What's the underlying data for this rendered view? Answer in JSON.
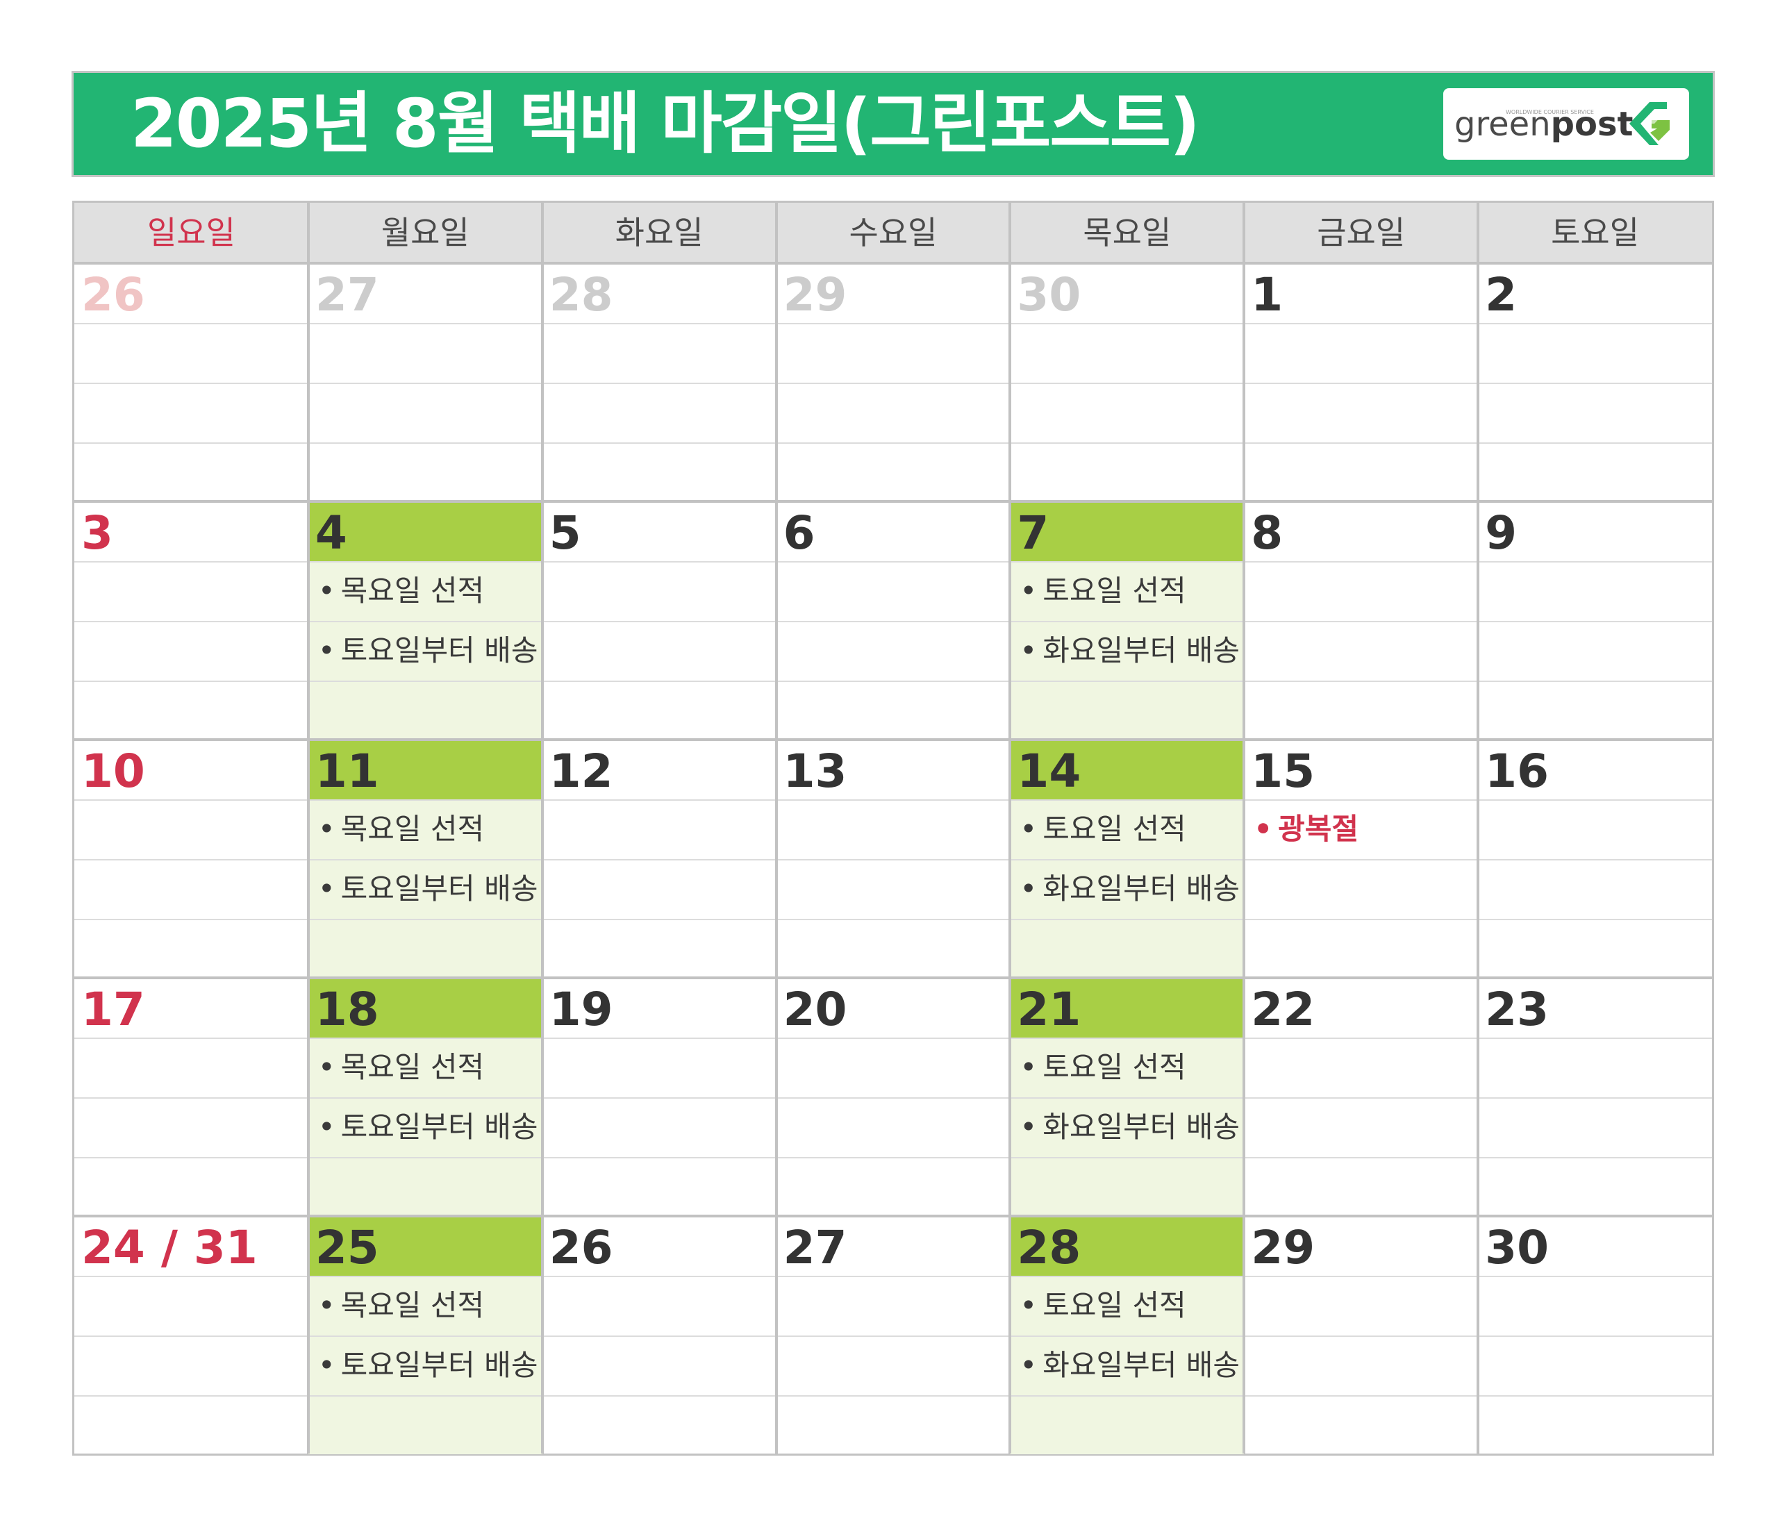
{
  "title": "2025년 8월 택배 마감일(그린포스트)",
  "logo": {
    "text_light": "green",
    "text_bold": "post",
    "tagline": "WORLDWIDE COURIER SERVICE",
    "mark": "G-logo-icon",
    "mark_color": "#22b573"
  },
  "colors": {
    "title_bg": "#22b573",
    "header_bg": "#e0e0e0",
    "deadline_strip": "#a8cf45",
    "deadline_body": "#f0f6e1",
    "sunday_red": "#d1334d"
  },
  "weekdays": [
    "일요일",
    "월요일",
    "화요일",
    "수요일",
    "목요일",
    "금요일",
    "토요일"
  ],
  "weeks": [
    [
      {
        "label": "26",
        "style": "faded-sun"
      },
      {
        "label": "27",
        "style": "faded"
      },
      {
        "label": "28",
        "style": "faded"
      },
      {
        "label": "29",
        "style": "faded"
      },
      {
        "label": "30",
        "style": "faded"
      },
      {
        "label": "1",
        "style": "normal"
      },
      {
        "label": "2",
        "style": "normal"
      }
    ],
    [
      {
        "label": "3",
        "style": "sun"
      },
      {
        "label": "4",
        "style": "normal",
        "highlight": true,
        "notes": [
          "목요일 선적",
          "토요일부터 배송"
        ]
      },
      {
        "label": "5",
        "style": "normal"
      },
      {
        "label": "6",
        "style": "normal"
      },
      {
        "label": "7",
        "style": "normal",
        "highlight": true,
        "notes": [
          "토요일 선적",
          "화요일부터 배송"
        ]
      },
      {
        "label": "8",
        "style": "normal"
      },
      {
        "label": "9",
        "style": "normal"
      }
    ],
    [
      {
        "label": "10",
        "style": "sun"
      },
      {
        "label": "11",
        "style": "normal",
        "highlight": true,
        "notes": [
          "목요일 선적",
          "토요일부터 배송"
        ]
      },
      {
        "label": "12",
        "style": "normal"
      },
      {
        "label": "13",
        "style": "normal"
      },
      {
        "label": "14",
        "style": "normal",
        "highlight": true,
        "notes": [
          "토요일 선적",
          "화요일부터 배송"
        ]
      },
      {
        "label": "15",
        "style": "normal",
        "holiday": "광복절"
      },
      {
        "label": "16",
        "style": "normal"
      }
    ],
    [
      {
        "label": "17",
        "style": "sun"
      },
      {
        "label": "18",
        "style": "normal",
        "highlight": true,
        "notes": [
          "목요일 선적",
          "토요일부터 배송"
        ]
      },
      {
        "label": "19",
        "style": "normal"
      },
      {
        "label": "20",
        "style": "normal"
      },
      {
        "label": "21",
        "style": "normal",
        "highlight": true,
        "notes": [
          "토요일 선적",
          "화요일부터 배송"
        ]
      },
      {
        "label": "22",
        "style": "normal"
      },
      {
        "label": "23",
        "style": "normal"
      }
    ],
    [
      {
        "label": "24 / 31",
        "style": "sun"
      },
      {
        "label": "25",
        "style": "normal",
        "highlight": true,
        "notes": [
          "목요일 선적",
          "토요일부터 배송"
        ]
      },
      {
        "label": "26",
        "style": "normal"
      },
      {
        "label": "27",
        "style": "normal"
      },
      {
        "label": "28",
        "style": "normal",
        "highlight": true,
        "notes": [
          "토요일 선적",
          "화요일부터 배송"
        ]
      },
      {
        "label": "29",
        "style": "normal"
      },
      {
        "label": "30",
        "style": "normal"
      }
    ]
  ]
}
